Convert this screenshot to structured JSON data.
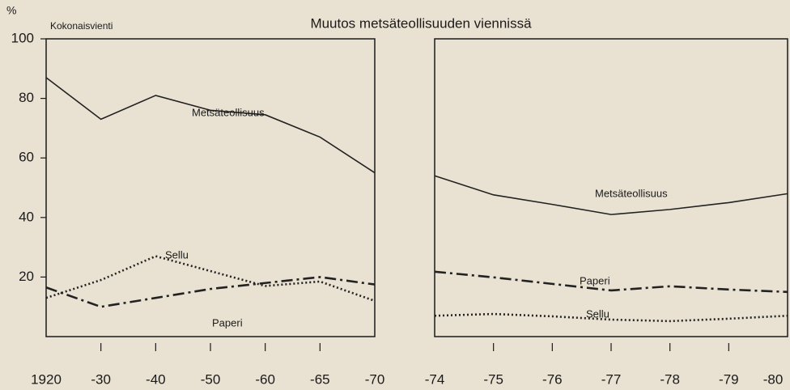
{
  "chart_data": [
    {
      "type": "line",
      "title": "Muutos metsäteollisuuden viennissä",
      "ylabel": "%",
      "subtitle": "Kokonaisvienti",
      "categories": [
        "1920",
        "-30",
        "-40",
        "-50",
        "-60",
        "-65",
        "-70"
      ],
      "ylim": [
        0,
        100
      ],
      "yticks": [
        20,
        40,
        60,
        80,
        100
      ],
      "series": [
        {
          "name": "Metsäteollisuus",
          "color": "#222222",
          "style": "solid",
          "values": [
            87,
            73,
            81,
            76,
            74.5,
            67,
            55
          ]
        },
        {
          "name": "Sellu",
          "color": "#222222",
          "style": "dotted",
          "values": [
            13,
            19,
            27,
            22,
            17,
            18.5,
            12
          ]
        },
        {
          "name": "Paperi",
          "color": "#222222",
          "style": "dashdot",
          "values": [
            16.5,
            10,
            13,
            16,
            18,
            20,
            17.5
          ]
        }
      ]
    },
    {
      "type": "line",
      "categories": [
        "-74",
        "-75",
        "-76",
        "-77",
        "-78",
        "-79",
        "-80"
      ],
      "ylim": [
        0,
        100
      ],
      "series": [
        {
          "name": "Metsäteollisuus",
          "color": "#222222",
          "style": "solid",
          "values": [
            54,
            47.6,
            44.4,
            41,
            42.7,
            45,
            48
          ]
        },
        {
          "name": "Paperi",
          "color": "#222222",
          "style": "dashdot",
          "values": [
            21.8,
            19.9,
            17.7,
            15.5,
            16.9,
            15.8,
            15
          ]
        },
        {
          "name": "Sellu",
          "color": "#222222",
          "style": "dotted",
          "values": [
            7,
            7.6,
            6.8,
            5.7,
            5.2,
            6,
            7
          ]
        }
      ]
    }
  ]
}
